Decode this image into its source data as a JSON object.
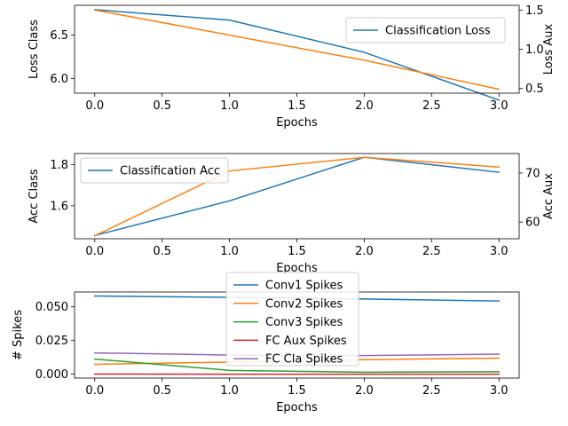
{
  "chart_data": [
    {
      "type": "line",
      "x": [
        0,
        1,
        2,
        3
      ],
      "xlabel": "Epochs",
      "ylabel": "Loss Class",
      "ylabel_right": "Loss Aux",
      "xlim": [
        -0.15,
        3.15
      ],
      "ylim": [
        5.83,
        6.84
      ],
      "ylim_right": [
        0.44,
        1.56
      ],
      "xticks": [
        0,
        0.5,
        1,
        1.5,
        2,
        2.5,
        3
      ],
      "xtick_labels": [
        "0.0",
        "0.5",
        "1.0",
        "1.5",
        "2.0",
        "2.5",
        "3.0"
      ],
      "yticks": [
        6.0,
        6.5
      ],
      "ytick_labels": [
        "6.0",
        "6.5"
      ],
      "yticks_right": [
        0.5,
        1.0,
        1.5
      ],
      "ytick_labels_right": [
        "0.5",
        "1.0",
        "1.5"
      ],
      "legend_position": "upper right",
      "series": [
        {
          "name": "Classification Loss",
          "axis": "left",
          "color": "#1f77b4",
          "values": [
            6.79,
            6.67,
            6.3,
            5.75
          ],
          "in_legend": true
        },
        {
          "name": "",
          "axis": "right",
          "color": "#ff7f0e",
          "values": [
            1.5,
            1.18,
            0.86,
            0.49
          ],
          "in_legend": false
        }
      ]
    },
    {
      "type": "line",
      "x": [
        0,
        1,
        2,
        3
      ],
      "xlabel": "Epochs",
      "ylabel": "Acc Class",
      "ylabel_right": "Acc Aux",
      "xlim": [
        -0.15,
        3.15
      ],
      "ylim": [
        1.44,
        1.854
      ],
      "ylim_right": [
        56.6,
        73.96
      ],
      "xticks": [
        0,
        0.5,
        1,
        1.5,
        2,
        2.5,
        3
      ],
      "xtick_labels": [
        "0.0",
        "0.5",
        "1.0",
        "1.5",
        "2.0",
        "2.5",
        "3.0"
      ],
      "yticks": [
        1.6,
        1.8
      ],
      "ytick_labels": [
        "1.6",
        "1.8"
      ],
      "yticks_right": [
        60,
        70
      ],
      "ytick_labels_right": [
        "60",
        "70"
      ],
      "legend_position": "upper left",
      "series": [
        {
          "name": "Classification Acc",
          "axis": "left",
          "color": "#1f77b4",
          "values": [
            1.456,
            1.624,
            1.836,
            1.763
          ],
          "in_legend": true
        },
        {
          "name": "",
          "axis": "right",
          "color": "#ff7f0e",
          "values": [
            57.2,
            70.4,
            73.2,
            71.2
          ],
          "in_legend": false
        }
      ]
    },
    {
      "type": "line",
      "x": [
        0,
        1,
        2,
        3
      ],
      "xlabel": "Epochs",
      "ylabel": "# Spikes",
      "xlim": [
        -0.15,
        3.15
      ],
      "ylim": [
        -0.0029,
        0.061
      ],
      "xticks": [
        0,
        0.5,
        1,
        1.5,
        2,
        2.5,
        3
      ],
      "xtick_labels": [
        "0.0",
        "0.5",
        "1.0",
        "1.5",
        "2.0",
        "2.5",
        "3.0"
      ],
      "yticks": [
        0,
        0.025,
        0.05
      ],
      "ytick_labels": [
        "0.000",
        "0.025",
        "0.050"
      ],
      "legend_position": "upper center",
      "series": [
        {
          "name": "Conv1 Spikes",
          "axis": "left",
          "color": "#1f77b4",
          "values": [
            0.058,
            0.057,
            0.0558,
            0.0543
          ],
          "in_legend": true
        },
        {
          "name": "Conv2 Spikes",
          "axis": "left",
          "color": "#ff7f0e",
          "values": [
            0.0073,
            0.009,
            0.0108,
            0.0119
          ],
          "in_legend": true
        },
        {
          "name": "Conv3 Spikes",
          "axis": "left",
          "color": "#2ca02c",
          "values": [
            0.0112,
            0.0028,
            0.0015,
            0.0018
          ],
          "in_legend": true
        },
        {
          "name": "FC Aux Spikes",
          "axis": "left",
          "color": "#d62728",
          "values": [
            0.0001,
            0.0,
            0.0,
            0.0
          ],
          "in_legend": true
        },
        {
          "name": "FC Cla Spikes",
          "axis": "left",
          "color": "#9467bd",
          "values": [
            0.0158,
            0.0142,
            0.0138,
            0.0149
          ],
          "in_legend": true
        }
      ]
    }
  ]
}
